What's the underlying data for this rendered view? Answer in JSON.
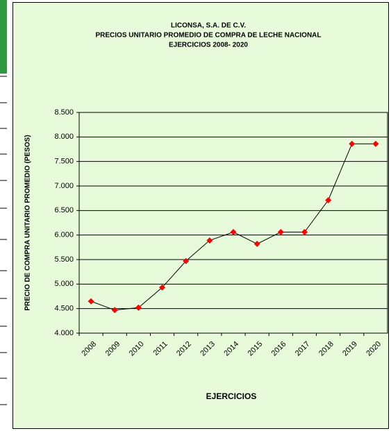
{
  "chart_data": {
    "type": "line",
    "title": [
      "LICONSA, S.A. DE C.V.",
      "PRECIOS UNITARIO PROMEDIO DE COMPRA DE LECHE NACIONAL",
      "EJERCICIOS 2008- 2020"
    ],
    "x_label": "EJERCICIOS",
    "y_label": "PRECIO  DE  COMPRA  UNITARIO  PROMEDIO  (PESOS)",
    "categories": [
      "2008",
      "2009",
      "2010",
      "2011",
      "2012",
      "2013",
      "2014",
      "2015",
      "2016",
      "2017",
      "2018",
      "2019",
      "2020"
    ],
    "values": [
      4.65,
      4.47,
      4.52,
      4.93,
      5.47,
      5.89,
      6.06,
      5.82,
      6.06,
      6.06,
      6.71,
      7.86,
      7.86
    ],
    "color": "#ff0000",
    "line_color": "#000000",
    "ylim": [
      4.0,
      8.5
    ],
    "yticks": [
      {
        "value": 4.0,
        "label": "4.000"
      },
      {
        "value": 4.5,
        "label": "4.500"
      },
      {
        "value": 5.0,
        "label": "5.000"
      },
      {
        "value": 5.5,
        "label": "5.500"
      },
      {
        "value": 6.0,
        "label": "6.000"
      },
      {
        "value": 6.5,
        "label": "6.500"
      },
      {
        "value": 7.0,
        "label": "7.000"
      },
      {
        "value": 7.5,
        "label": "7.500"
      },
      {
        "value": 8.0,
        "label": "8.000"
      },
      {
        "value": 8.5,
        "label": "8.500"
      }
    ],
    "grid": true
  }
}
